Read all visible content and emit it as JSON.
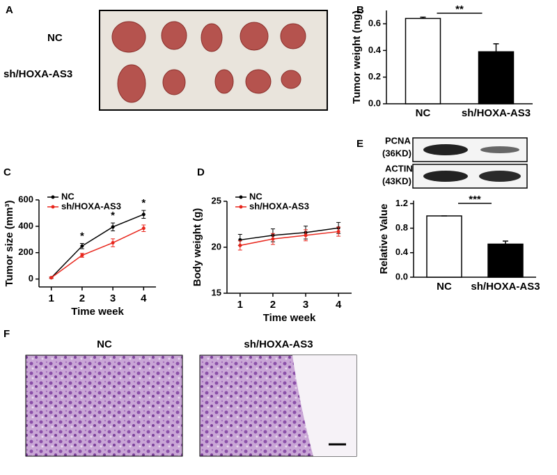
{
  "panel_a": {
    "letter": "A",
    "rows": [
      "NC",
      "sh/HOXA-AS3"
    ]
  },
  "panel_e_blot": {
    "letter": "E",
    "bands": [
      [
        "PCNA",
        "(36KD)"
      ],
      [
        "ACTIN",
        "(43KD)"
      ]
    ]
  },
  "panel_f": {
    "letter": "F",
    "titles": [
      "NC",
      "sh/HOXA-AS3"
    ]
  },
  "chart_data": [
    {
      "type": "bar",
      "panel": "B",
      "y_label": "Tumor weight (mg)",
      "categories": [
        "NC",
        "sh/HOXA-AS3"
      ],
      "values": [
        0.64,
        0.39
      ],
      "errors": [
        0.01,
        0.06
      ],
      "colors": [
        "#ffffff",
        "#000000"
      ],
      "ylim": [
        0,
        0.7
      ],
      "yticks": [
        {
          "value": 0,
          "label": "0.0"
        },
        0.2,
        0.4,
        0.6
      ],
      "significance": "**"
    },
    {
      "type": "line",
      "panel": "C",
      "y_label": "Tumor size (mm³)",
      "x_label": "Time week",
      "x": [
        1,
        2,
        3,
        4
      ],
      "xlim": [
        0.6,
        4.4
      ],
      "xticks": [
        1,
        2,
        3,
        4
      ],
      "ylim": [
        -60,
        600
      ],
      "yticks": [
        0,
        200,
        400,
        600
      ],
      "legend": "upper-left",
      "series": [
        {
          "name": "NC",
          "color": "#000000",
          "values": [
            10,
            250,
            395,
            490
          ],
          "errors": [
            5,
            20,
            30,
            30
          ]
        },
        {
          "name": "sh/HOXA-AS3",
          "color": "#e8261c",
          "values": [
            10,
            180,
            275,
            385
          ],
          "errors": [
            5,
            15,
            30,
            25
          ]
        }
      ],
      "significance_marks": [
        {
          "x": 2,
          "label": "*"
        },
        {
          "x": 3,
          "label": "*"
        },
        {
          "x": 4,
          "label": "*"
        }
      ]
    },
    {
      "type": "line",
      "panel": "D",
      "y_label": "Body weight (g)",
      "x_label": "Time week",
      "x": [
        1,
        2,
        3,
        4
      ],
      "xlim": [
        0.6,
        4.4
      ],
      "xticks": [
        1,
        2,
        3,
        4
      ],
      "ylim": [
        15,
        25
      ],
      "yticks": [
        15,
        20,
        25
      ],
      "legend": "upper-left",
      "series": [
        {
          "name": "NC",
          "color": "#000000",
          "values": [
            20.8,
            21.3,
            21.6,
            22.1
          ],
          "errors": [
            0.6,
            0.7,
            0.7,
            0.6
          ]
        },
        {
          "name": "sh/HOXA-AS3",
          "color": "#e8261c",
          "values": [
            20.2,
            20.9,
            21.3,
            21.7
          ],
          "errors": [
            0.5,
            0.6,
            0.6,
            0.5
          ]
        }
      ]
    },
    {
      "type": "bar",
      "y_label": "Relative Value",
      "categories": [
        "NC",
        "sh/HOXA-AS3"
      ],
      "values": [
        1.0,
        0.54
      ],
      "errors": [
        0,
        0.05
      ],
      "colors": [
        "#ffffff",
        "#000000"
      ],
      "ylim": [
        0,
        1.25
      ],
      "yticks": [
        {
          "value": 0,
          "label": "0.0"
        },
        0.4,
        0.8,
        1.2
      ],
      "significance": "***"
    }
  ]
}
